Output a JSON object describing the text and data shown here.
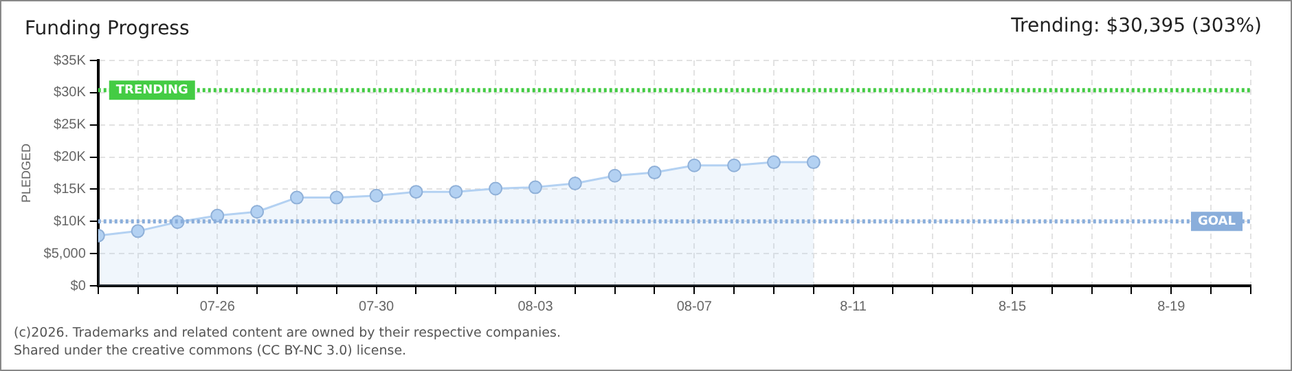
{
  "chart_data": {
    "type": "area",
    "title": "Funding Progress",
    "subtitle": "Trending: $30,395 (303%)",
    "ylabel": "PLEDGED",
    "x": [
      "--07-23",
      "--07-24",
      "--07-25",
      "--07-26",
      "--07-27",
      "--07-28",
      "--07-29",
      "--07-30",
      "--07-31",
      "--08-01",
      "--08-02",
      "--08-03",
      "--08-04",
      "--08-05",
      "--08-06",
      "--08-07",
      "--08-08",
      "--08-09",
      "--08-10"
    ],
    "series": [
      {
        "color": "#b3d1f2",
        "values": [
          7800,
          8500,
          9900,
          10900,
          11500,
          13700,
          13700,
          14000,
          14600,
          14600,
          15100,
          15300,
          15900,
          17100,
          17600,
          18700,
          18700,
          19200,
          19200
        ]
      }
    ],
    "xlim": [
      "--07-23",
      "--08-21"
    ],
    "xticks": [
      {
        "value": "--07-23",
        "label": null
      },
      {
        "value": "--07-24",
        "label": null
      },
      {
        "value": "--07-25",
        "label": null
      },
      {
        "value": "--07-26",
        "label": "07-26"
      },
      {
        "value": "--07-27",
        "label": null
      },
      {
        "value": "--07-28",
        "label": null
      },
      {
        "value": "--07-29",
        "label": null
      },
      {
        "value": "--07-30",
        "label": "07-30"
      },
      {
        "value": "--07-31",
        "label": null
      },
      {
        "value": "--08-01",
        "label": null
      },
      {
        "value": "--08-02",
        "label": null
      },
      {
        "value": "--08-03",
        "label": "08-03"
      },
      {
        "value": "--08-04",
        "label": null
      },
      {
        "value": "--08-05",
        "label": null
      },
      {
        "value": "--08-06",
        "label": null
      },
      {
        "value": "--08-07",
        "label": "08-07"
      },
      {
        "value": "--08-08",
        "label": null
      },
      {
        "value": "--08-09",
        "label": null
      },
      {
        "value": "--08-10",
        "label": null
      },
      {
        "value": "--08-11",
        "label": "8-11"
      },
      {
        "value": "--08-12",
        "label": null
      },
      {
        "value": "--08-13",
        "label": null
      },
      {
        "value": "--08-14",
        "label": null
      },
      {
        "value": "--08-15",
        "label": "8-15"
      },
      {
        "value": "--08-16",
        "label": null
      },
      {
        "value": "--08-17",
        "label": null
      },
      {
        "value": "--08-18",
        "label": null
      },
      {
        "value": "--08-19",
        "label": "8-19"
      },
      {
        "value": "--08-20",
        "label": null
      },
      {
        "value": "--08-21",
        "label": null
      }
    ],
    "ylim": [
      0,
      35000
    ],
    "yticks": [
      {
        "value": 0,
        "label": "$0"
      },
      {
        "value": 5000,
        "label": "$5,000"
      },
      {
        "value": 10000,
        "label": "$10K"
      },
      {
        "value": 15000,
        "label": "$15K"
      },
      {
        "value": 20000,
        "label": "$20K"
      },
      {
        "value": 25000,
        "label": "$25K"
      },
      {
        "value": 30000,
        "label": "$30K"
      },
      {
        "value": 35000,
        "label": "$35K"
      }
    ],
    "ref_lines": [
      {
        "axis": "y",
        "value": 30395,
        "label": "TRENDING",
        "color": "#44cc44",
        "line_style": "dotted"
      },
      {
        "axis": "y",
        "value": 10000,
        "label": "GOAL",
        "color": "#8aaedb",
        "line_style": "dotted"
      }
    ],
    "annotations": [
      "(c)2026. Trademarks and related content are owned by their respective companies.",
      "Shared under the creative commons (CC BY-NC 3.0) license."
    ],
    "grid": true,
    "marker": "circle",
    "line_style": "solid",
    "legend": false
  }
}
